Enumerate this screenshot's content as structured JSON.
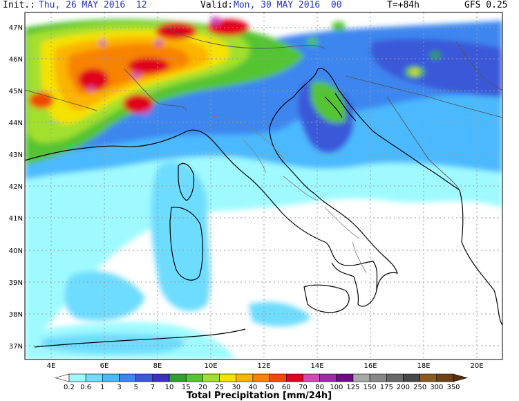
{
  "header": {
    "init_label": "Init.:",
    "init_value": "Thu, 26 MAY 2016  12",
    "valid_label": "Valid:",
    "valid_value": "Mon, 30 MAY 2016  00",
    "lead": "T=+84h",
    "model": "GFS 0.25"
  },
  "axes": {
    "lat_labels": [
      "47N",
      "46N",
      "45N",
      "44N",
      "43N",
      "42N",
      "41N",
      "40N",
      "39N",
      "38N",
      "37N"
    ],
    "lon_labels": [
      "4E",
      "6E",
      "8E",
      "10E",
      "12E",
      "14E",
      "16E",
      "18E",
      "20E"
    ]
  },
  "colorbar": {
    "title": "Total Precipitation [mm/24h]",
    "levels": [
      "0.2",
      "0.6",
      "1",
      "3",
      "5",
      "7",
      "10",
      "15",
      "20",
      "25",
      "30",
      "40",
      "50",
      "60",
      "70",
      "80",
      "100",
      "125",
      "150",
      "175",
      "200",
      "250",
      "300",
      "350"
    ],
    "colors": [
      "#ffffff",
      "#9ffaff",
      "#6edcff",
      "#4bb9ff",
      "#3d86f0",
      "#3b58d9",
      "#3d2fc0",
      "#2fa12f",
      "#55c431",
      "#a2e02f",
      "#f5e200",
      "#fbb400",
      "#f88300",
      "#f04a00",
      "#e0001e",
      "#d04ab8",
      "#a02aa8",
      "#700a88",
      "#a8a8a8",
      "#888888",
      "#686868",
      "#484848",
      "#8a5a1e",
      "#6e4214",
      "#52300c"
    ]
  }
}
